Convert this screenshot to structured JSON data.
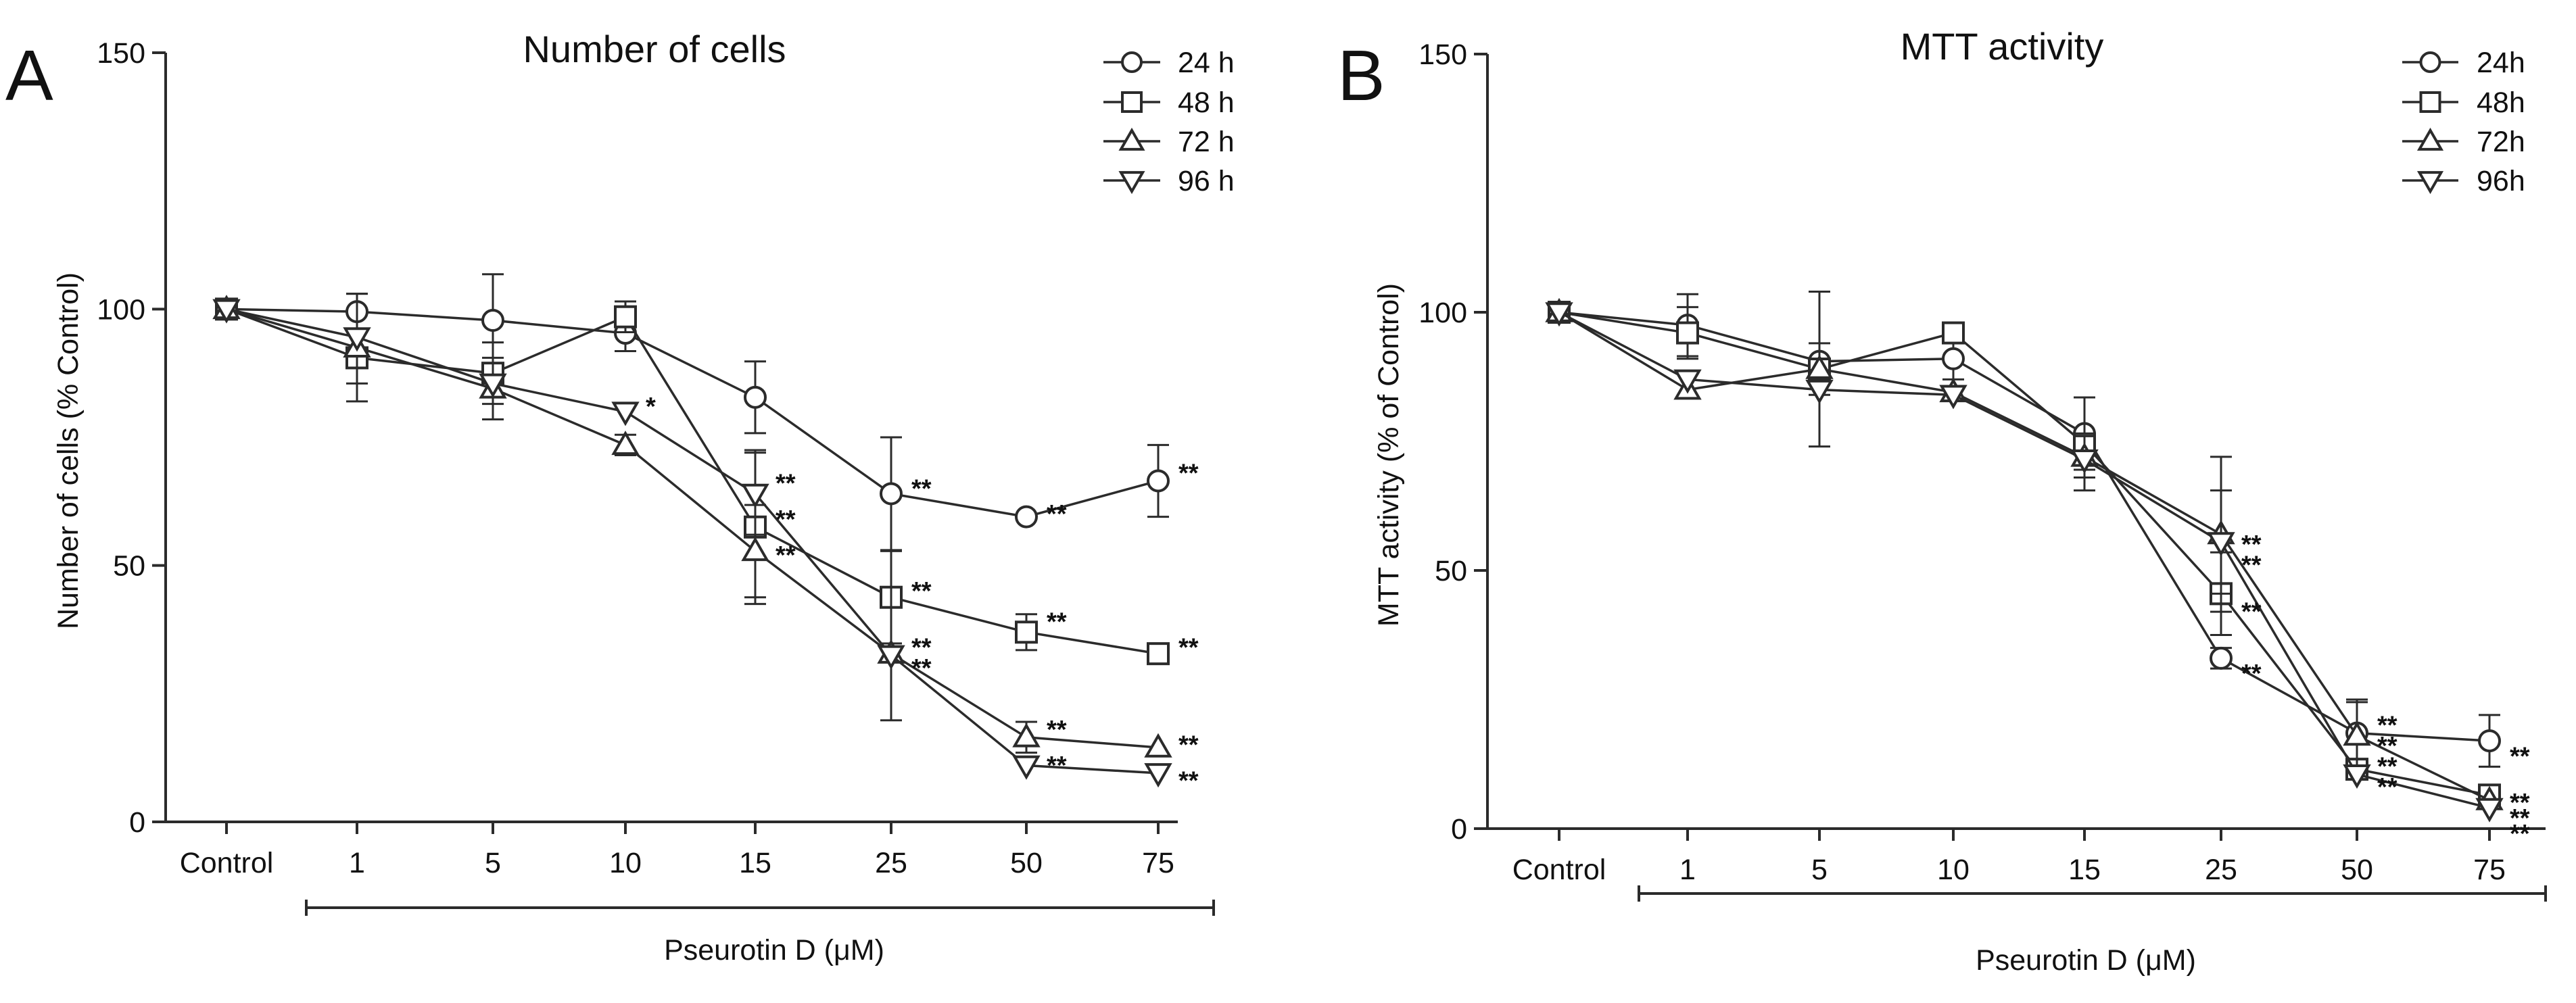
{
  "chart_data": [
    {
      "type": "line",
      "panel_label": "A",
      "title": "Number of cells",
      "xlabel": "Pseurotin D (μM)",
      "ylabel": "Number of cells (% Control)",
      "categories": [
        "Control",
        "1",
        "5",
        "10",
        "15",
        "25",
        "50",
        "75"
      ],
      "ylim": [
        0,
        150
      ],
      "yticks": [
        "0",
        "50",
        "100",
        "150"
      ],
      "grid": false,
      "legend_position": "top-right",
      "series": [
        {
          "name": "24 h",
          "marker": "circle",
          "values": [
            100,
            99.5,
            97.8,
            95.3,
            82.8,
            64.0,
            59.5,
            66.5
          ],
          "errors": [
            0,
            3.5,
            9,
            3.5,
            7,
            11,
            0,
            7
          ]
        },
        {
          "name": "48 h",
          "marker": "square",
          "values": [
            100,
            90.5,
            87.5,
            98.5,
            57.5,
            43.8,
            37.0,
            32.8
          ],
          "errors": [
            0,
            5,
            6,
            3,
            15,
            9,
            3.5,
            2
          ]
        },
        {
          "name": "72 h",
          "marker": "triangle-up",
          "values": [
            100,
            92.5,
            84.5,
            73.5,
            52.8,
            32.8,
            16.5,
            14.5
          ],
          "errors": [
            0,
            10.5,
            6,
            2,
            9,
            13,
            3,
            0
          ]
        },
        {
          "name": "96 h",
          "marker": "triangle-down",
          "values": [
            100,
            94.5,
            85.5,
            80.0,
            64.0,
            32.5,
            11.0,
            9.5
          ],
          "errors": [
            0,
            0,
            0,
            0,
            8,
            0,
            0,
            0
          ]
        }
      ],
      "annotations": [
        {
          "text": "*",
          "category": "10",
          "value": 82
        },
        {
          "text": "**",
          "category": "15",
          "value": 67
        },
        {
          "text": "**",
          "category": "15",
          "value": 60
        },
        {
          "text": "**",
          "category": "15",
          "value": 53
        },
        {
          "text": "**",
          "category": "25",
          "value": 66
        },
        {
          "text": "**",
          "category": "25",
          "value": 46
        },
        {
          "text": "**",
          "category": "25",
          "value": 35
        },
        {
          "text": "**",
          "category": "25",
          "value": 31
        },
        {
          "text": "**",
          "category": "50",
          "value": 61
        },
        {
          "text": "**",
          "category": "50",
          "value": 40
        },
        {
          "text": "**",
          "category": "50",
          "value": 19
        },
        {
          "text": "**",
          "category": "50",
          "value": 12
        },
        {
          "text": "**",
          "category": "75",
          "value": 69
        },
        {
          "text": "**",
          "category": "75",
          "value": 35
        },
        {
          "text": "**",
          "category": "75",
          "value": 16
        },
        {
          "text": "**",
          "category": "75",
          "value": 9
        }
      ]
    },
    {
      "type": "line",
      "panel_label": "B",
      "title": "MTT activity",
      "xlabel": "Pseurotin D (μM)",
      "ylabel": "MTT activity (% of Control)",
      "categories": [
        "Control",
        "1",
        "5",
        "10",
        "15",
        "25",
        "50",
        "75"
      ],
      "ylim": [
        0,
        150
      ],
      "yticks": [
        "0",
        "50",
        "100",
        "150"
      ],
      "grid": false,
      "legend_position": "top-right",
      "series": [
        {
          "name": "24h",
          "marker": "circle",
          "values": [
            100,
            97.5,
            90.5,
            91.0,
            76.5,
            33.0,
            18.5,
            17.0
          ],
          "errors": [
            0,
            6,
            0,
            4,
            7,
            2,
            6,
            5
          ]
        },
        {
          "name": "48h",
          "marker": "square",
          "values": [
            100,
            96.0,
            89.0,
            96.0,
            74.5,
            45.5,
            11.5,
            6.5
          ],
          "errors": [
            0,
            5,
            15,
            0,
            9,
            8,
            2,
            1.5
          ]
        },
        {
          "name": "72h",
          "marker": "triangle-up",
          "values": [
            100,
            85.0,
            89.0,
            84.5,
            72.0,
            57.0,
            18.0,
            5.5
          ],
          "errors": [
            0,
            0,
            5,
            0,
            4,
            15,
            7,
            0
          ]
        },
        {
          "name": "96h",
          "marker": "triangle-down",
          "values": [
            100,
            87.0,
            85.0,
            84.0,
            71.5,
            55.5,
            10.5,
            4.0
          ],
          "errors": [
            0,
            0,
            0,
            0,
            0,
            10,
            0,
            0
          ]
        }
      ],
      "annotations": [
        {
          "text": "**",
          "category": "25",
          "value": 56
        },
        {
          "text": "**",
          "category": "25",
          "value": 52
        },
        {
          "text": "**",
          "category": "25",
          "value": 43
        },
        {
          "text": "**",
          "category": "25",
          "value": 31
        },
        {
          "text": "**",
          "category": "50",
          "value": 21
        },
        {
          "text": "**",
          "category": "50",
          "value": 17
        },
        {
          "text": "**",
          "category": "50",
          "value": 13
        },
        {
          "text": "**",
          "category": "50",
          "value": 9
        },
        {
          "text": "**",
          "category": "75",
          "value": 15
        },
        {
          "text": "**",
          "category": "75",
          "value": 6
        },
        {
          "text": "**",
          "category": "75",
          "value": 3
        },
        {
          "text": "**",
          "category": "75",
          "value": 0
        }
      ]
    }
  ]
}
